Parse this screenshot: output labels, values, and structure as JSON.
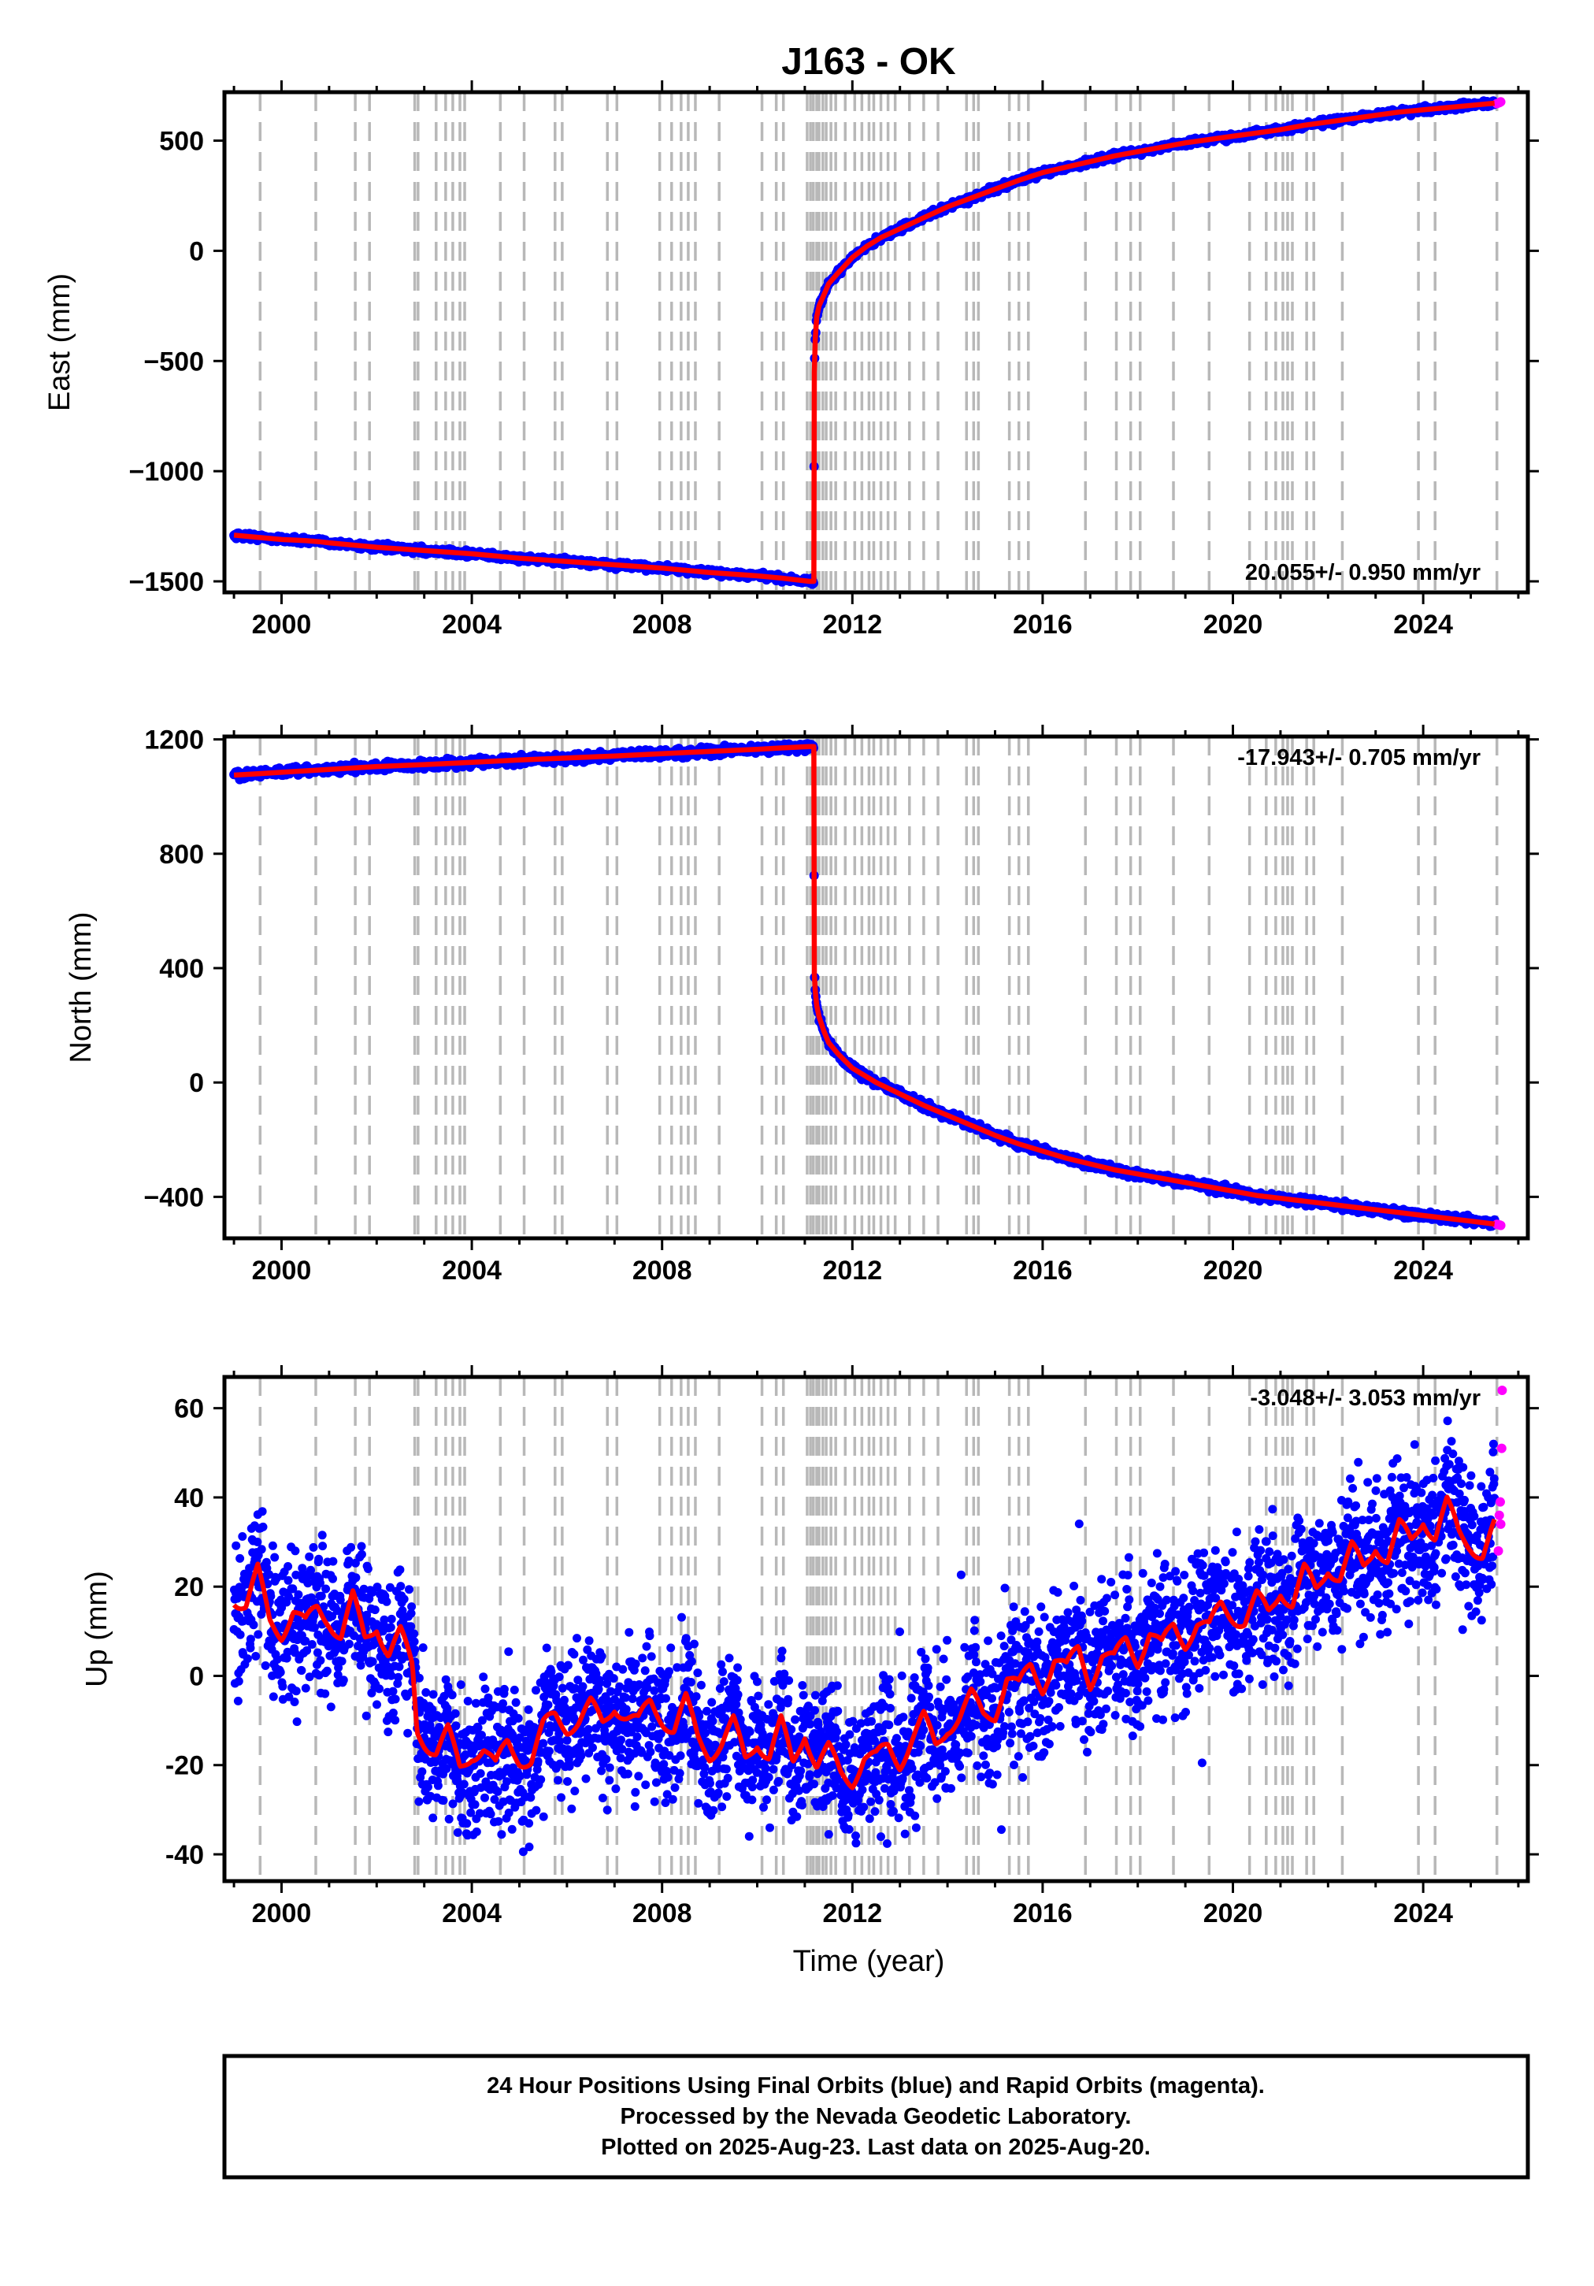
{
  "title": "J163 - OK",
  "colors": {
    "final_orbits": "#0000ff",
    "rapid_orbits": "#ff00ff",
    "model": "#ff0000",
    "event_lines": "#b8b8b8"
  },
  "chart_data": [
    {
      "type": "scatter",
      "component": "east",
      "ylabel": "East (mm)",
      "ylim": [
        -1550,
        720
      ],
      "yticks": [
        500,
        0,
        -500,
        -1000,
        -1500
      ],
      "ytick_labels": [
        "500",
        "0",
        "−500",
        "−1000",
        "−1500"
      ],
      "xlim": [
        1998.8,
        2026.2
      ],
      "xticks": [
        2000,
        2004,
        2008,
        2012,
        2016,
        2020,
        2024
      ],
      "xtick_labels": [
        "2000",
        "2004",
        "2008",
        "2012",
        "2016",
        "2020",
        "2024"
      ],
      "rate_label": "20.055+/- 0.950 mm/yr",
      "rate_position": "bottom-right",
      "series": [
        {
          "orbit": "final",
          "x": [
            1999.0,
            1999.5,
            2000.0,
            2000.5,
            2000.8,
            2001.0,
            2002.0,
            2003.0,
            2004.0,
            2005.0,
            2006.0,
            2007.0,
            2008.0,
            2009.0,
            2010.0,
            2010.5,
            2011.1,
            2011.19,
            2011.2,
            2011.22,
            2011.25,
            2011.3,
            2011.4,
            2011.5,
            2011.7,
            2012.0,
            2012.3,
            2012.6,
            2013.0,
            2013.5,
            2014.0,
            2014.5,
            2015.0,
            2015.5,
            2016.0,
            2016.5,
            2017.0,
            2017.5,
            2018.0,
            2018.5,
            2019.0,
            2019.5,
            2020.0,
            2020.5,
            2021.0,
            2021.5,
            2022.0,
            2022.5,
            2023.0,
            2023.5,
            2024.0,
            2024.5,
            2025.0,
            2025.5
          ],
          "y": [
            -1290,
            -1300,
            -1310,
            -1315,
            -1320,
            -1325,
            -1345,
            -1360,
            -1375,
            -1395,
            -1410,
            -1425,
            -1440,
            -1460,
            -1475,
            -1485,
            -1500,
            -1500,
            -550,
            -400,
            -300,
            -250,
            -200,
            -150,
            -100,
            -30,
            20,
            60,
            100,
            150,
            200,
            240,
            280,
            320,
            355,
            380,
            405,
            430,
            450,
            470,
            490,
            505,
            520,
            535,
            550,
            570,
            585,
            600,
            615,
            630,
            640,
            650,
            660,
            670
          ]
        },
        {
          "orbit": "rapid",
          "x": [
            2025.55,
            2025.6,
            2025.63
          ],
          "y": [
            668,
            672,
            676
          ]
        }
      ]
    },
    {
      "type": "scatter",
      "component": "north",
      "ylabel": "North (mm)",
      "ylim": [
        -545,
        1210
      ],
      "yticks": [
        1200,
        800,
        400,
        0,
        -400
      ],
      "ytick_labels": [
        "1200",
        "800",
        "400",
        "0",
        "−400"
      ],
      "xlim": [
        1998.8,
        2026.2
      ],
      "xticks": [
        2000,
        2004,
        2008,
        2012,
        2016,
        2020,
        2024
      ],
      "xtick_labels": [
        "2000",
        "2004",
        "2008",
        "2012",
        "2016",
        "2020",
        "2024"
      ],
      "rate_label": "-17.943+/- 0.705 mm/yr",
      "rate_position": "top-right",
      "series": [
        {
          "orbit": "final",
          "x": [
            1999.0,
            1999.5,
            2000.0,
            2001.0,
            2002.0,
            2003.0,
            2004.0,
            2005.0,
            2006.0,
            2007.0,
            2008.0,
            2009.0,
            2010.0,
            2010.5,
            2011.1,
            2011.19,
            2011.2,
            2011.22,
            2011.25,
            2011.3,
            2011.4,
            2011.5,
            2011.7,
            2012.0,
            2012.5,
            2013.0,
            2013.5,
            2014.0,
            2014.5,
            2015.0,
            2015.5,
            2016.0,
            2016.5,
            2017.0,
            2017.5,
            2018.0,
            2018.5,
            2019.0,
            2019.5,
            2020.0,
            2020.5,
            2021.0,
            2021.5,
            2022.0,
            2022.5,
            2023.0,
            2023.5,
            2024.0,
            2024.5,
            2025.0,
            2025.5
          ],
          "y": [
            1075,
            1080,
            1085,
            1095,
            1105,
            1112,
            1120,
            1128,
            1135,
            1142,
            1150,
            1158,
            1165,
            1170,
            1175,
            1175,
            380,
            320,
            270,
            230,
            180,
            140,
            100,
            50,
            0,
            -40,
            -80,
            -115,
            -150,
            -185,
            -215,
            -240,
            -265,
            -285,
            -305,
            -320,
            -335,
            -350,
            -365,
            -380,
            -395,
            -405,
            -415,
            -425,
            -435,
            -445,
            -455,
            -465,
            -475,
            -485,
            -495
          ]
        },
        {
          "orbit": "rapid",
          "x": [
            2025.55,
            2025.6,
            2025.63
          ],
          "y": [
            -496,
            -498,
            -500
          ]
        }
      ]
    },
    {
      "type": "scatter",
      "component": "up",
      "ylabel": "Up (mm)",
      "xlabel": "Time (year)",
      "ylim": [
        -46,
        67
      ],
      "yticks": [
        60,
        40,
        20,
        0,
        -20,
        -40
      ],
      "ytick_labels": [
        "60",
        "40",
        "20",
        "0",
        "-20",
        "-40"
      ],
      "xlim": [
        1998.8,
        2026.2
      ],
      "xticks": [
        2000,
        2004,
        2008,
        2012,
        2016,
        2020,
        2024
      ],
      "xtick_labels": [
        "2000",
        "2004",
        "2008",
        "2012",
        "2016",
        "2020",
        "2024"
      ],
      "rate_label": "-3.048+/- 3.053 mm/yr",
      "rate_position": "top-right",
      "series": [
        {
          "orbit": "final",
          "x": [
            1999.0,
            1999.25,
            1999.5,
            1999.75,
            2000.0,
            2000.25,
            2000.5,
            2000.75,
            2001.0,
            2001.25,
            2001.5,
            2001.75,
            2002.0,
            2002.25,
            2002.5,
            2002.75,
            2002.85,
            2003.0,
            2003.25,
            2003.5,
            2003.75,
            2004.0,
            2004.25,
            2004.5,
            2004.75,
            2005.0,
            2005.25,
            2005.5,
            2005.75,
            2006.0,
            2006.25,
            2006.5,
            2006.75,
            2007.0,
            2007.25,
            2007.5,
            2007.75,
            2008.0,
            2008.25,
            2008.5,
            2008.75,
            2009.0,
            2009.25,
            2009.5,
            2009.75,
            2010.0,
            2010.25,
            2010.5,
            2010.75,
            2011.0,
            2011.25,
            2011.5,
            2011.75,
            2012.0,
            2012.25,
            2012.5,
            2012.75,
            2013.0,
            2013.25,
            2013.5,
            2013.75,
            2014.0,
            2014.25,
            2014.5,
            2014.75,
            2015.0,
            2015.25,
            2015.5,
            2015.75,
            2016.0,
            2016.25,
            2016.5,
            2016.75,
            2017.0,
            2017.25,
            2017.5,
            2017.75,
            2018.0,
            2018.25,
            2018.5,
            2018.75,
            2019.0,
            2019.25,
            2019.5,
            2019.75,
            2020.0,
            2020.25,
            2020.5,
            2020.75,
            2021.0,
            2021.25,
            2021.5,
            2021.75,
            2022.0,
            2022.25,
            2022.5,
            2022.75,
            2023.0,
            2023.25,
            2023.5,
            2023.75,
            2024.0,
            2024.25,
            2024.5,
            2024.75,
            2025.0,
            2025.25,
            2025.5
          ],
          "y": [
            18,
            16,
            23,
            12,
            10,
            15,
            11,
            15,
            13,
            9,
            17,
            8,
            12,
            5,
            9,
            2,
            -12,
            -14,
            -17,
            -13,
            -21,
            -17,
            -16,
            -21,
            -15,
            -18,
            -19,
            -12,
            -9,
            -11,
            -10,
            -7,
            -11,
            -6,
            -9,
            -11,
            -6,
            -9,
            -12,
            -6,
            -14,
            -17,
            -15,
            -11,
            -19,
            -14,
            -18,
            -11,
            -20,
            -12,
            -20,
            -17,
            -22,
            -23,
            -18,
            -19,
            -16,
            -19,
            -14,
            -10,
            -16,
            -11,
            -9,
            -5,
            -9,
            -8,
            0,
            -3,
            2,
            -2,
            4,
            1,
            6,
            -1,
            5,
            3,
            8,
            4,
            10,
            6,
            11,
            8,
            12,
            10,
            16,
            14,
            12,
            17,
            14,
            20,
            16,
            23,
            19,
            25,
            22,
            28,
            24,
            30,
            26,
            33,
            30,
            36,
            31,
            38,
            32,
            30,
            27,
            33
          ]
        },
        {
          "orbit": "rapid",
          "x": [
            2025.58,
            2025.6,
            2025.62,
            2025.63,
            2025.65,
            2025.66
          ],
          "y": [
            28,
            36,
            39,
            34,
            51,
            64
          ]
        }
      ]
    }
  ],
  "event_lines_x": [
    1999.55,
    2000.72,
    2001.55,
    2001.85,
    2002.8,
    2002.87,
    2003.25,
    2003.45,
    2003.6,
    2003.75,
    2003.85,
    2004.6,
    2005.1,
    2005.75,
    2005.9,
    2006.85,
    2007.05,
    2007.95,
    2008.2,
    2008.4,
    2008.55,
    2008.7,
    2009.2,
    2010.1,
    2010.4,
    2010.55,
    2011.05,
    2011.12,
    2011.18,
    2011.25,
    2011.3,
    2011.38,
    2011.45,
    2011.55,
    2011.65,
    2011.85,
    2012.05,
    2012.2,
    2012.35,
    2012.45,
    2012.6,
    2012.75,
    2012.9,
    2013.2,
    2013.5,
    2013.8,
    2014.4,
    2014.55,
    2014.65,
    2015.3,
    2015.5,
    2015.7,
    2016.9,
    2017.55,
    2017.85,
    2018.05,
    2018.75,
    2019.5,
    2020.35,
    2020.7,
    2020.9,
    2021.05,
    2021.15,
    2021.25,
    2021.55,
    2021.7,
    2022.3,
    2023.9,
    2024.25,
    2025.55
  ],
  "footer": {
    "line1": "24 Hour Positions Using Final Orbits (blue) and Rapid Orbits (magenta).",
    "line2": "Processed by the Nevada Geodetic Laboratory.",
    "line3": "Plotted on 2025-Aug-23. Last data on 2025-Aug-20."
  }
}
